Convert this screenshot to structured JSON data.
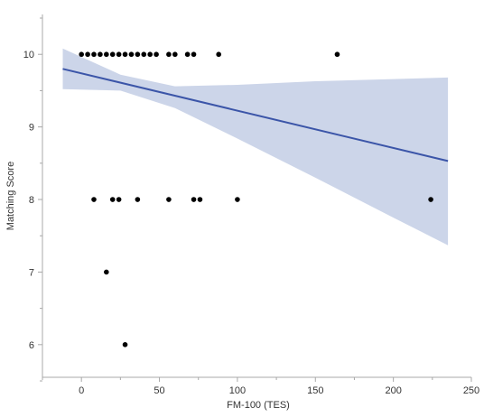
{
  "chart_data": {
    "type": "scatter",
    "title": "",
    "xlabel": "FM-100 (TES)",
    "ylabel": "Matching  Score",
    "xlim": [
      -25,
      250
    ],
    "ylim": [
      5.55,
      10.55
    ],
    "x_ticks": [
      0,
      50,
      100,
      150,
      200,
      250
    ],
    "y_ticks": [
      6,
      7,
      8,
      9,
      10
    ],
    "x_tick_labels": [
      "0",
      "50",
      "100",
      "150",
      "200",
      "250"
    ],
    "y_tick_labels": [
      "6",
      "7",
      "8",
      "9",
      "10"
    ],
    "grid": false,
    "legend": "none",
    "points": [
      {
        "x": 0,
        "y": 10
      },
      {
        "x": 4,
        "y": 10
      },
      {
        "x": 8,
        "y": 10
      },
      {
        "x": 12,
        "y": 10
      },
      {
        "x": 16,
        "y": 10
      },
      {
        "x": 20,
        "y": 10
      },
      {
        "x": 24,
        "y": 10
      },
      {
        "x": 28,
        "y": 10
      },
      {
        "x": 32,
        "y": 10
      },
      {
        "x": 36,
        "y": 10
      },
      {
        "x": 40,
        "y": 10
      },
      {
        "x": 44,
        "y": 10
      },
      {
        "x": 48,
        "y": 10
      },
      {
        "x": 56,
        "y": 10
      },
      {
        "x": 60,
        "y": 10
      },
      {
        "x": 68,
        "y": 10
      },
      {
        "x": 72,
        "y": 10
      },
      {
        "x": 88,
        "y": 10
      },
      {
        "x": 164,
        "y": 10
      },
      {
        "x": 8,
        "y": 8
      },
      {
        "x": 20,
        "y": 8
      },
      {
        "x": 24,
        "y": 8
      },
      {
        "x": 36,
        "y": 8
      },
      {
        "x": 56,
        "y": 8
      },
      {
        "x": 72,
        "y": 8
      },
      {
        "x": 76,
        "y": 8
      },
      {
        "x": 100,
        "y": 8
      },
      {
        "x": 224,
        "y": 8
      },
      {
        "x": 16,
        "y": 7
      },
      {
        "x": 28,
        "y": 6
      }
    ],
    "fit_line": {
      "x": [
        -12,
        235
      ],
      "y": [
        9.8,
        8.53
      ]
    },
    "confidence_band": {
      "x": [
        -12,
        25,
        60,
        100,
        150,
        200,
        235
      ],
      "upper": [
        10.08,
        9.72,
        9.56,
        9.58,
        9.63,
        9.66,
        9.68
      ],
      "lower": [
        9.52,
        9.5,
        9.26,
        8.84,
        8.3,
        7.75,
        7.37
      ]
    },
    "colors": {
      "points": "#000000",
      "fit_line": "#3b55a8",
      "band": "#ccd5e9",
      "axis": "#a8a8a8"
    }
  }
}
